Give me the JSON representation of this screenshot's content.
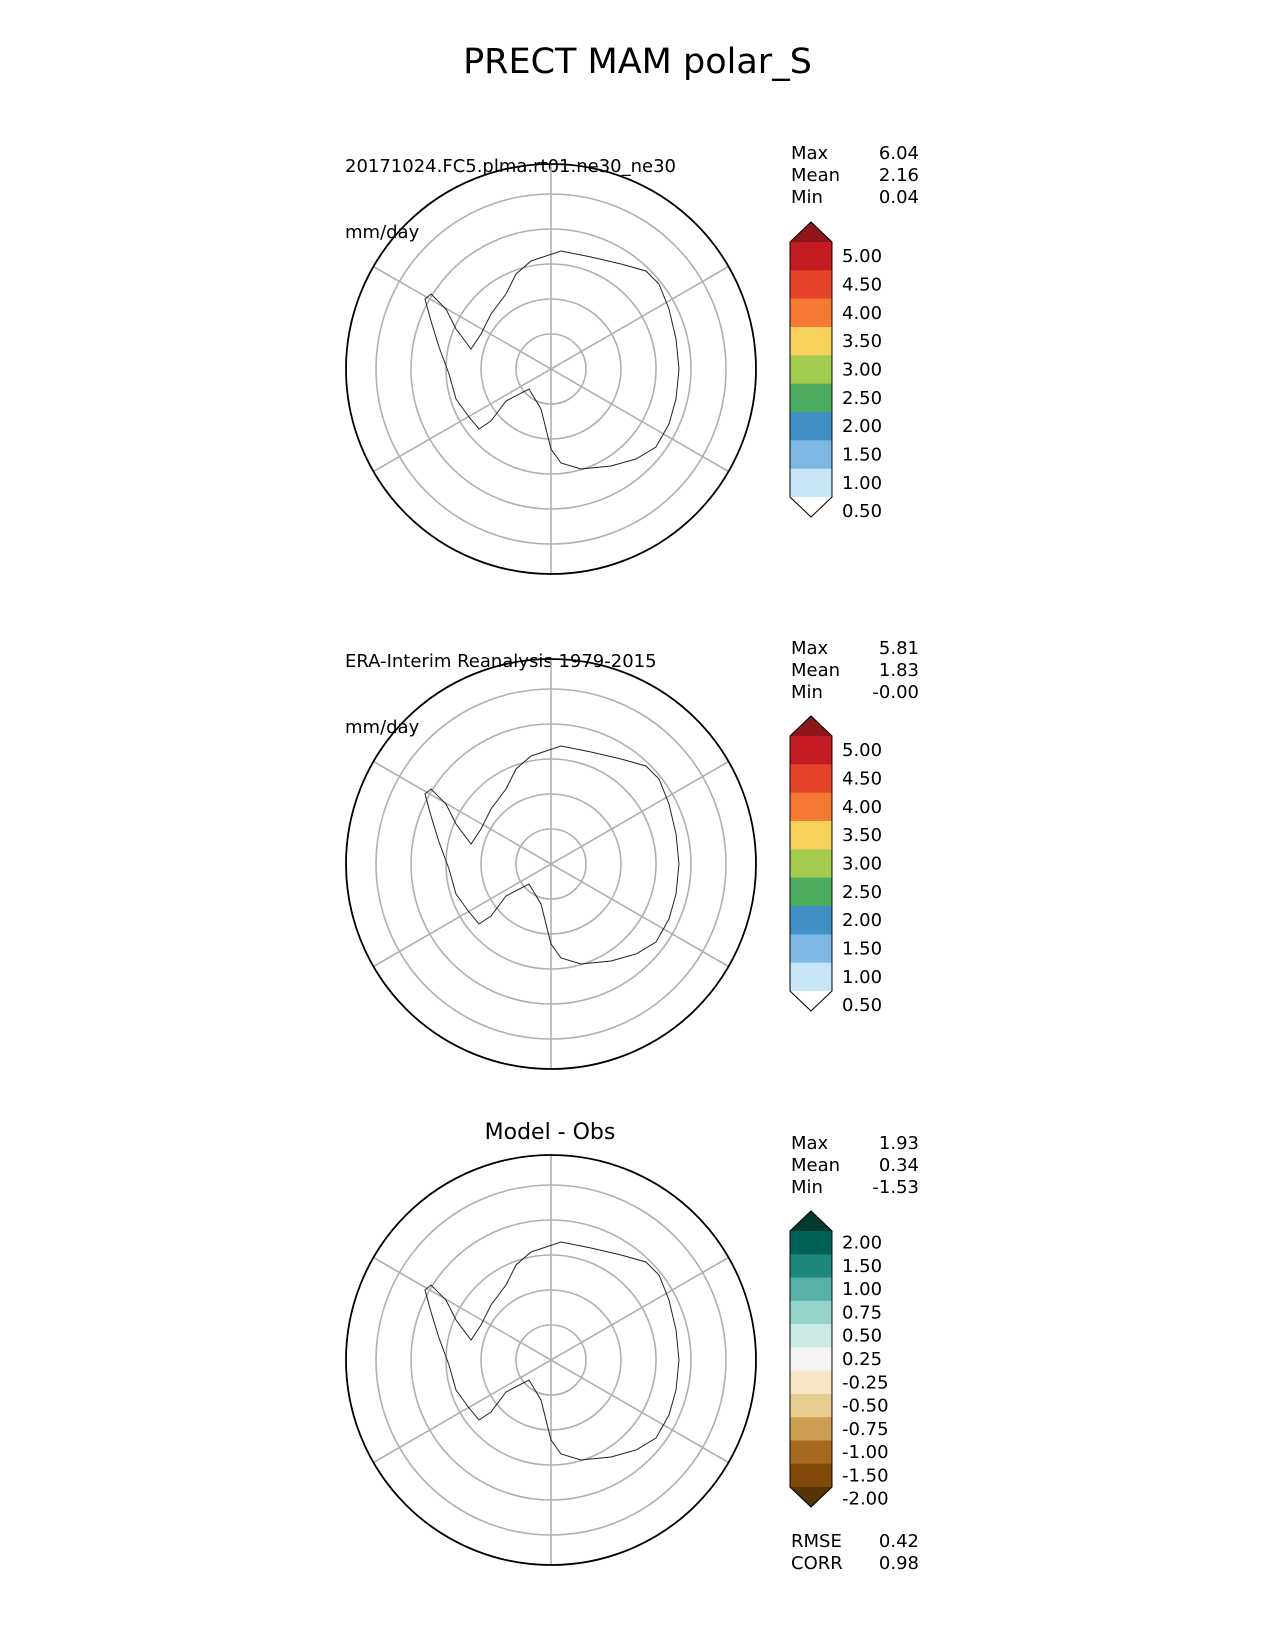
{
  "title": "PRECT MAM polar_S",
  "panels": [
    {
      "name": "test",
      "title_line1": "20171024.FC5.plma.rt01.ne30_ne30",
      "title_line2": "mm/day",
      "stats": [
        {
          "label": "Max",
          "value": "6.04"
        },
        {
          "label": "Mean",
          "value": "2.16"
        },
        {
          "label": "Min",
          "value": "0.04"
        }
      ],
      "colorbar": {
        "ticks": [
          "5.00",
          "4.50",
          "4.00",
          "3.50",
          "3.00",
          "2.50",
          "2.00",
          "1.50",
          "1.00",
          "0.50"
        ],
        "colors": [
          "#8e161b",
          "#c41b22",
          "#e5432a",
          "#f47a33",
          "#f6d25a",
          "#a3cc4f",
          "#4cab5c",
          "#418fc4",
          "#7bb8e3",
          "#c6e6f8",
          "#ffffff"
        ]
      }
    },
    {
      "name": "reference",
      "title_line1": "ERA-Interim Reanalysis 1979-2015",
      "title_line2": "mm/day",
      "stats": [
        {
          "label": "Max",
          "value": "5.81"
        },
        {
          "label": "Mean",
          "value": "1.83"
        },
        {
          "label": "Min",
          "value": "-0.00"
        }
      ],
      "colorbar": {
        "ticks": [
          "5.00",
          "4.50",
          "4.00",
          "3.50",
          "3.00",
          "2.50",
          "2.00",
          "1.50",
          "1.00",
          "0.50"
        ],
        "colors": [
          "#8e161b",
          "#c41b22",
          "#e5432a",
          "#f47a33",
          "#f6d25a",
          "#a3cc4f",
          "#4cab5c",
          "#418fc4",
          "#7bb8e3",
          "#c6e6f8",
          "#ffffff"
        ]
      }
    },
    {
      "name": "difference",
      "title_center": "Model - Obs",
      "stats": [
        {
          "label": "Max",
          "value": "1.93"
        },
        {
          "label": "Mean",
          "value": "0.34"
        },
        {
          "label": "Min",
          "value": "-1.53"
        }
      ],
      "extra_stats": [
        {
          "label": "RMSE",
          "value": "0.42"
        },
        {
          "label": "CORR",
          "value": "0.98"
        }
      ],
      "colorbar": {
        "ticks": [
          "2.00",
          "1.50",
          "1.00",
          "0.75",
          "0.50",
          "0.25",
          "-0.25",
          "-0.50",
          "-0.75",
          "-1.00",
          "-1.50",
          "-2.00"
        ],
        "colors": [
          "#023a2f",
          "#006156",
          "#1d877b",
          "#58b1a4",
          "#94d3c7",
          "#cbeae4",
          "#f4f4f4",
          "#f5e6c5",
          "#e8cd8f",
          "#cc9e54",
          "#a76822",
          "#824808",
          "#573404"
        ]
      }
    }
  ]
}
